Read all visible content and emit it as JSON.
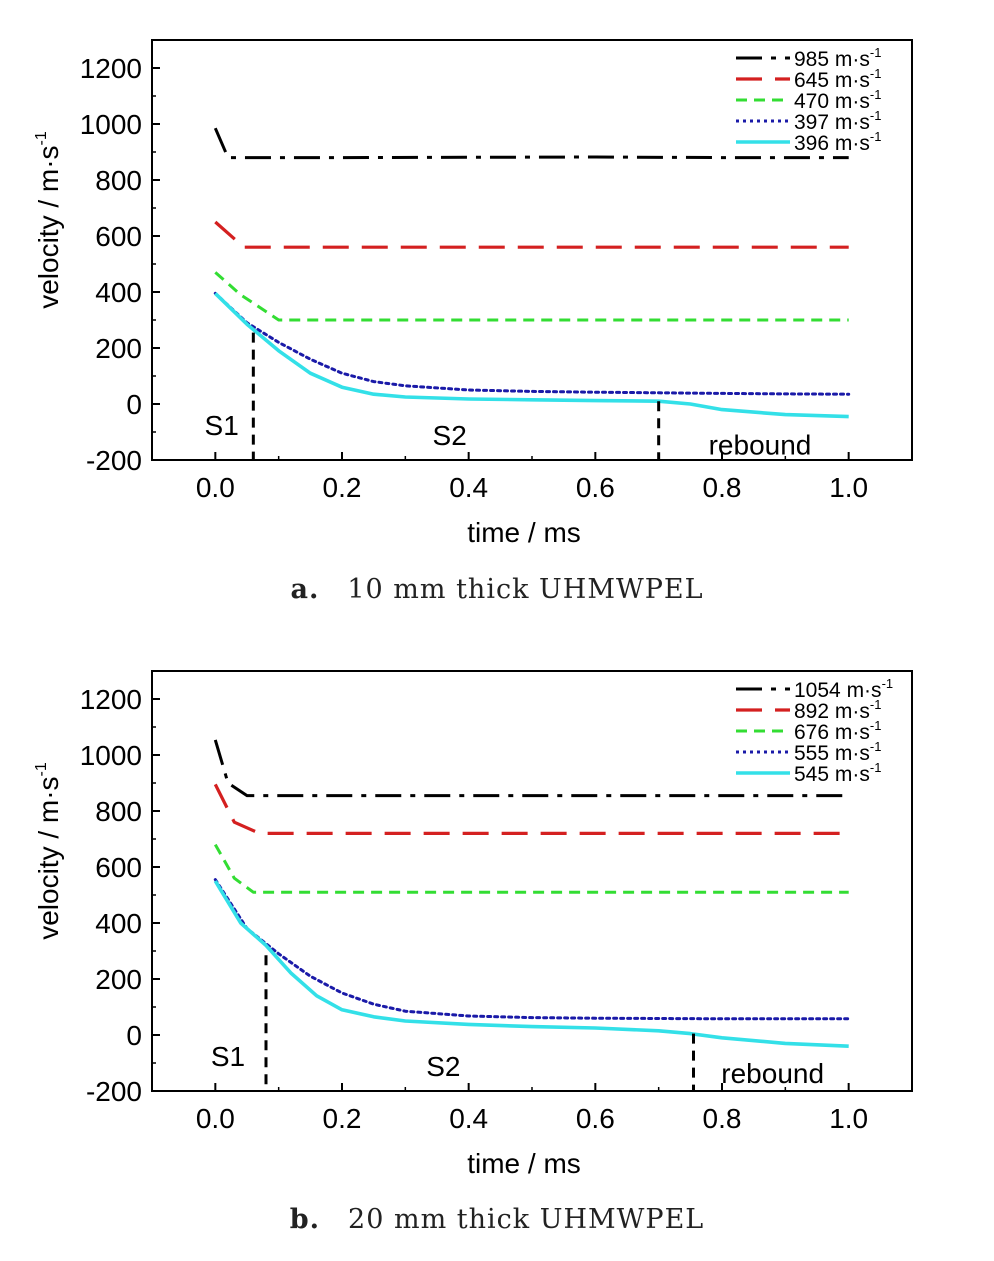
{
  "chart_data": [
    {
      "type": "line",
      "title": "",
      "xlabel": "time / ms",
      "ylabel": "velocity / m·s",
      "ylabel_sup": "-1",
      "xlim": [
        -0.1,
        1.1
      ],
      "ylim": [
        -200,
        1300
      ],
      "xticks": [
        0.0,
        0.2,
        0.4,
        0.6,
        0.8,
        1.0
      ],
      "xtick_labels": [
        "0.0",
        "0.2",
        "0.4",
        "0.6",
        "0.8",
        "1.0"
      ],
      "yticks": [
        -200,
        0,
        200,
        400,
        600,
        800,
        1000,
        1200
      ],
      "ytick_labels": [
        "-200",
        "0",
        "200",
        "400",
        "600",
        "800",
        "1000",
        "1200"
      ],
      "legend_position": "top-right",
      "grid": false,
      "series": [
        {
          "name": "985",
          "unit": "m·s",
          "unit_sup": "-1",
          "color": "#000000",
          "dash": "dashdot",
          "points": [
            [
              0.0,
              985
            ],
            [
              0.02,
              880
            ],
            [
              0.2,
              880
            ],
            [
              0.6,
              882
            ],
            [
              0.8,
              880
            ],
            [
              1.0,
              880
            ]
          ]
        },
        {
          "name": "645",
          "unit": "m·s",
          "unit_sup": "-1",
          "color": "#d42020",
          "dash": "longdash",
          "points": [
            [
              0.0,
              650
            ],
            [
              0.045,
              560
            ],
            [
              0.3,
              560
            ],
            [
              0.6,
              560
            ],
            [
              1.0,
              560
            ]
          ]
        },
        {
          "name": "470",
          "unit": "m·s",
          "unit_sup": "-1",
          "color": "#33dd33",
          "dash": "shortdash",
          "points": [
            [
              0.0,
              470
            ],
            [
              0.04,
              390
            ],
            [
              0.1,
              300
            ],
            [
              0.3,
              300
            ],
            [
              0.6,
              300
            ],
            [
              1.0,
              300
            ]
          ]
        },
        {
          "name": "397",
          "unit": "m·s",
          "unit_sup": "-1",
          "color": "#1a1aa8",
          "dash": "dot",
          "points": [
            [
              0.0,
              395
            ],
            [
              0.05,
              290
            ],
            [
              0.1,
              220
            ],
            [
              0.15,
              160
            ],
            [
              0.2,
              110
            ],
            [
              0.25,
              80
            ],
            [
              0.3,
              65
            ],
            [
              0.4,
              50
            ],
            [
              0.5,
              45
            ],
            [
              0.6,
              42
            ],
            [
              0.7,
              40
            ],
            [
              0.8,
              38
            ],
            [
              0.9,
              36
            ],
            [
              1.0,
              35
            ]
          ]
        },
        {
          "name": "396",
          "unit": "m·s",
          "unit_sup": "-1",
          "color": "#33e0e8",
          "dash": "solid",
          "points": [
            [
              0.0,
              395
            ],
            [
              0.05,
              285
            ],
            [
              0.1,
              190
            ],
            [
              0.15,
              110
            ],
            [
              0.2,
              60
            ],
            [
              0.25,
              35
            ],
            [
              0.3,
              25
            ],
            [
              0.4,
              18
            ],
            [
              0.5,
              15
            ],
            [
              0.6,
              12
            ],
            [
              0.7,
              10
            ],
            [
              0.75,
              0
            ],
            [
              0.8,
              -20
            ],
            [
              0.9,
              -38
            ],
            [
              1.0,
              -45
            ]
          ]
        }
      ],
      "vlines": [
        {
          "x": 0.06,
          "y_top": 255
        },
        {
          "x": 0.7,
          "y_top": 10
        }
      ],
      "annotations": [
        {
          "text": "S1",
          "x": 0.01,
          "y": -75
        },
        {
          "text": "S2",
          "x": 0.37,
          "y": -110
        },
        {
          "text": "rebound",
          "x": 0.86,
          "y": -145
        }
      ]
    },
    {
      "type": "line",
      "title": "",
      "xlabel": "time / ms",
      "ylabel": "velocity / m·s",
      "ylabel_sup": "-1",
      "xlim": [
        -0.1,
        1.1
      ],
      "ylim": [
        -200,
        1300
      ],
      "xticks": [
        0.0,
        0.2,
        0.4,
        0.6,
        0.8,
        1.0
      ],
      "xtick_labels": [
        "0.0",
        "0.2",
        "0.4",
        "0.6",
        "0.8",
        "1.0"
      ],
      "yticks": [
        -200,
        0,
        200,
        400,
        600,
        800,
        1000,
        1200
      ],
      "ytick_labels": [
        "-200",
        "0",
        "200",
        "400",
        "600",
        "800",
        "1000",
        "1200"
      ],
      "legend_position": "top-right",
      "grid": false,
      "series": [
        {
          "name": "1054",
          "unit": "m·s",
          "unit_sup": "-1",
          "color": "#000000",
          "dash": "dashdot",
          "points": [
            [
              0.0,
              1054
            ],
            [
              0.02,
              900
            ],
            [
              0.05,
              855
            ],
            [
              0.3,
              855
            ],
            [
              0.6,
              855
            ],
            [
              1.0,
              855
            ]
          ]
        },
        {
          "name": "892",
          "unit": "m·s",
          "unit_sup": "-1",
          "color": "#d42020",
          "dash": "longdash",
          "points": [
            [
              0.0,
              895
            ],
            [
              0.03,
              760
            ],
            [
              0.07,
              720
            ],
            [
              0.3,
              720
            ],
            [
              0.6,
              720
            ],
            [
              1.0,
              720
            ]
          ]
        },
        {
          "name": "676",
          "unit": "m·s",
          "unit_sup": "-1",
          "color": "#33dd33",
          "dash": "shortdash",
          "points": [
            [
              0.0,
              680
            ],
            [
              0.03,
              560
            ],
            [
              0.06,
              510
            ],
            [
              0.3,
              510
            ],
            [
              0.6,
              510
            ],
            [
              1.0,
              510
            ]
          ]
        },
        {
          "name": "555",
          "unit": "m·s",
          "unit_sup": "-1",
          "color": "#1a1aa8",
          "dash": "dot",
          "points": [
            [
              0.0,
              555
            ],
            [
              0.05,
              380
            ],
            [
              0.1,
              290
            ],
            [
              0.15,
              210
            ],
            [
              0.2,
              150
            ],
            [
              0.25,
              110
            ],
            [
              0.3,
              85
            ],
            [
              0.4,
              68
            ],
            [
              0.5,
              62
            ],
            [
              0.6,
              60
            ],
            [
              0.8,
              58
            ],
            [
              1.0,
              58
            ]
          ]
        },
        {
          "name": "545",
          "unit": "m·s",
          "unit_sup": "-1",
          "color": "#33e0e8",
          "dash": "solid",
          "points": [
            [
              0.0,
              550
            ],
            [
              0.04,
              400
            ],
            [
              0.08,
              320
            ],
            [
              0.12,
              220
            ],
            [
              0.16,
              140
            ],
            [
              0.2,
              90
            ],
            [
              0.25,
              65
            ],
            [
              0.3,
              50
            ],
            [
              0.4,
              38
            ],
            [
              0.5,
              30
            ],
            [
              0.6,
              25
            ],
            [
              0.7,
              15
            ],
            [
              0.75,
              5
            ],
            [
              0.8,
              -10
            ],
            [
              0.9,
              -30
            ],
            [
              1.0,
              -40
            ]
          ]
        }
      ],
      "vlines": [
        {
          "x": 0.08,
          "y_top": 285
        },
        {
          "x": 0.755,
          "y_top": 5
        }
      ],
      "annotations": [
        {
          "text": "S1",
          "x": 0.02,
          "y": -75
        },
        {
          "text": "S2",
          "x": 0.36,
          "y": -110
        },
        {
          "text": "rebound",
          "x": 0.88,
          "y": -135
        }
      ]
    }
  ],
  "captions": {
    "a": {
      "letter": "a.",
      "text": "10 mm thick UHMWPEL"
    },
    "b": {
      "letter": "b.",
      "text": "20 mm thick UHMWPEL"
    }
  }
}
